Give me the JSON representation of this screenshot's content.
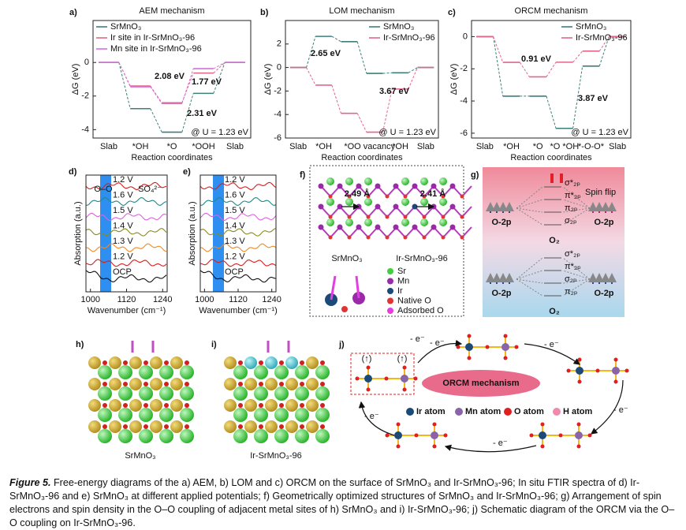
{
  "chart_data": [
    {
      "type": "step",
      "label": "a)",
      "title": "AEM mechanism",
      "y_label": "ΔG (eV)",
      "x_label": "Reaction coordinates",
      "categories": [
        "Slab",
        "*OH",
        "*O",
        "*OOH",
        "Slab"
      ],
      "ylim": [
        -4.5,
        2.5
      ],
      "yticks": [
        0,
        -2,
        -4
      ],
      "legend": "upper left",
      "series": [
        {
          "name": "SrMnO₃",
          "color": "#3d7f7a",
          "values": [
            0,
            -2.75,
            -4.15,
            -1.84,
            0
          ]
        },
        {
          "name": "Ir site in Ir-SrMnO₃-96",
          "color": "#e0668a",
          "values": [
            0,
            -1.4,
            -2.4,
            -0.63,
            0
          ]
        },
        {
          "name": "Mn site in Ir-SrMnO₃-96",
          "color": "#d470dc",
          "values": [
            0,
            -1.45,
            -2.45,
            -0.37,
            0
          ]
        }
      ],
      "annotations": [
        {
          "text": "2.08 eV",
          "color": "#d050d0"
        },
        {
          "text": "1.77 eV",
          "color": "#e0507a"
        },
        {
          "text": "2.31 eV",
          "color": "#3d7f7a"
        }
      ],
      "note": "@ U = 1.23 eV"
    },
    {
      "type": "step",
      "label": "b)",
      "title": "LOM mechanism",
      "y_label": "ΔG (eV)",
      "x_label": "Reaction coordinates",
      "categories": [
        "Slab",
        "*OH",
        "*O",
        "O vacancy",
        "*OH",
        "Slab"
      ],
      "ylim": [
        -6,
        4
      ],
      "yticks": [
        2,
        0,
        -2,
        -4,
        -6
      ],
      "legend": "upper right",
      "series": [
        {
          "name": "SrMnO₃",
          "color": "#3d7f7a",
          "values": [
            0,
            2.65,
            2.2,
            -0.5,
            -0.45,
            0
          ]
        },
        {
          "name": "Ir-SrMnO₃-96",
          "color": "#e0668a",
          "values": [
            0,
            -1.5,
            -3.9,
            -5.5,
            -1.83,
            0
          ]
        }
      ],
      "annotations": [
        {
          "text": "2.65 eV",
          "color": "#3d7f7a"
        },
        {
          "text": "3.67 eV",
          "color": "#e0507a"
        }
      ],
      "note": "@ U = 1.23 eV"
    },
    {
      "type": "step",
      "label": "c)",
      "title": "ORCM mechanism",
      "y_label": "ΔG (eV)",
      "x_label": "Reaction coordinates",
      "categories": [
        "Slab",
        "*OH",
        "*O",
        "*O *OH",
        "*-O-O*",
        "Slab"
      ],
      "ylim": [
        -6.3,
        1
      ],
      "yticks": [
        0,
        -2,
        -4,
        -6
      ],
      "legend": "upper right",
      "series": [
        {
          "name": "SrMnO₃",
          "color": "#3d7f7a",
          "values": [
            0,
            -3.7,
            -3.7,
            -5.7,
            -1.83,
            0
          ]
        },
        {
          "name": "Ir-SrMnO₃-96",
          "color": "#e0668a",
          "values": [
            0,
            -1.6,
            -2.5,
            -1.59,
            -0.9,
            0
          ]
        }
      ],
      "annotations": [
        {
          "text": "0.91 eV",
          "color": "#e0507a"
        },
        {
          "text": "3.87 eV",
          "color": "#3d7f7a"
        }
      ],
      "note": "@ U = 1.23 eV"
    }
  ],
  "panels": {
    "d": {
      "label": "d)",
      "y_label": "Absorption (a.u.)",
      "x_label": "Wavenumber (cm⁻¹)",
      "xlim": [
        985,
        1255
      ],
      "xticks": [
        1000,
        1120,
        1240
      ],
      "curves": [
        {
          "label": "1.2 V",
          "color": "#d62020"
        },
        {
          "label": "1.6 V",
          "color": "#1f8a8a"
        },
        {
          "label": "1.5 V",
          "color": "#e060e0"
        },
        {
          "label": "1.4 V",
          "color": "#8a8a20"
        },
        {
          "label": "1.3 V",
          "color": "#f08a20"
        },
        {
          "label": "1.2 V",
          "color": "#d62020"
        },
        {
          "label": "OCP",
          "color": "#111111"
        }
      ],
      "annotations": [
        "O–O",
        "SO₄²⁻"
      ]
    },
    "e": {
      "label": "e)",
      "y_label": "Absorption (a.u.)",
      "x_label": "Wavenumber (cm⁻¹)",
      "xlim": [
        985,
        1255
      ],
      "xticks": [
        1000,
        1120,
        1240
      ],
      "curves": [
        {
          "label": "1.2 V",
          "color": "#d62020"
        },
        {
          "label": "1.6 V",
          "color": "#1f8a8a"
        },
        {
          "label": "1.5 V",
          "color": "#e060e0"
        },
        {
          "label": "1.4 V",
          "color": "#8a8a20"
        },
        {
          "label": "1.3 V",
          "color": "#f08a20"
        },
        {
          "label": "1.2 V",
          "color": "#d62020"
        },
        {
          "label": "OCP",
          "color": "#111111"
        }
      ]
    },
    "f": {
      "label": "f)",
      "structures": [
        "SrMnO₃",
        "Ir-SrMnO₃-96"
      ],
      "distances": [
        "2.49 Å",
        "2.41 Å"
      ],
      "legend": [
        {
          "name": "Sr",
          "color": "#3fcf3f"
        },
        {
          "name": "Mn",
          "color": "#9a2aa8"
        },
        {
          "name": "Ir",
          "color": "#1c4a78"
        },
        {
          "name": "Native O",
          "color": "#e03434"
        },
        {
          "name": "Adsorbed O",
          "color": "#e23ee2"
        }
      ]
    },
    "g": {
      "label": "g)",
      "spin_flip": "Spin flip",
      "top": {
        "left": "O-2p",
        "right": "O-2p",
        "center": "O₂",
        "orbitals": [
          "σ*₂ₚ",
          "π*₂ₚ",
          "π₂ₚ",
          "σ₂ₚ"
        ]
      },
      "bottom": {
        "left": "O-2p",
        "right": "O-2p",
        "center": "O₂",
        "orbitals": [
          "σ*₂ₚ",
          "π*₂ₚ",
          "σ₂ₚ",
          "π₂ₚ"
        ]
      }
    },
    "h": {
      "label": "h)",
      "name": "SrMnO₃"
    },
    "i": {
      "label": "i)",
      "name": "Ir-SrMnO₃-96"
    },
    "j": {
      "label": "j)",
      "title": "ORCM mechanism",
      "spins": [
        "(↑)",
        "(↑)"
      ],
      "steps": [
        "- e⁻",
        "- e⁻",
        "- e⁻",
        "- e⁻",
        "- e⁻",
        "- e⁻"
      ],
      "legend": [
        {
          "name": "Ir atom",
          "color": "#1c4a78"
        },
        {
          "name": "Mn atom",
          "color": "#8a64a8"
        },
        {
          "name": "O atom",
          "color": "#e02020"
        },
        {
          "name": "H atom",
          "color": "#f08aaa"
        }
      ]
    }
  },
  "caption": {
    "label": "Figure 5.",
    "text": " Free-energy diagrams of the a) AEM, b) LOM and c) ORCM on the surface of SrMnO₃ and Ir-SrMnO₃-96; In situ FTIR spectra of d) Ir-SrMnO₃-96 and e) SrMnO₃ at different applied potentials; f) Geometrically optimized structures of SrMnO₃ and Ir-SrMnO₃-96; g) Arrangement of spin electrons and spin density in the O–O coupling of adjacent metal sites of h) SrMnO₃ and i) Ir-SrMnO₃-96; j) Schematic diagram of the ORCM via the O–O coupling on Ir-SrMnO₃-96."
  }
}
